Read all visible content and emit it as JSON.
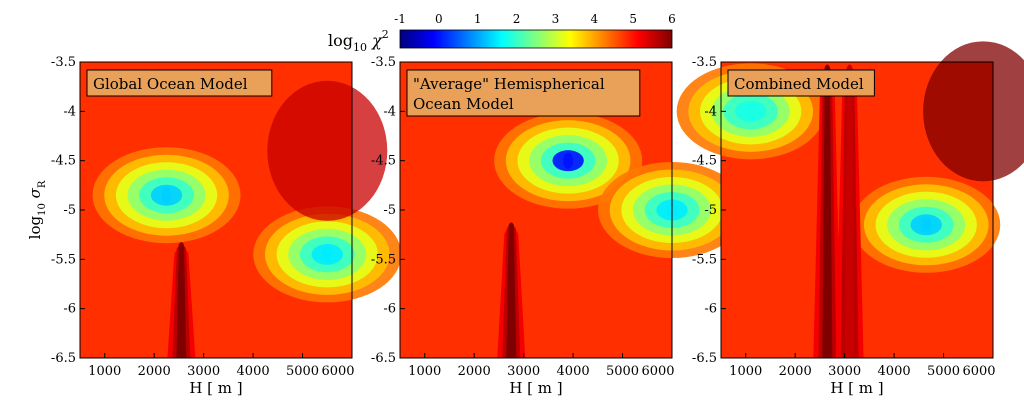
{
  "colorbar": {
    "label_base": "log",
    "label_sub": "10",
    "label_var": "χ",
    "label_sup": "2",
    "ticks": [
      "-1",
      "0",
      "1",
      "2",
      "3",
      "4",
      "5",
      "6"
    ],
    "range": [
      -1,
      6
    ],
    "colormap": "jet"
  },
  "axes": {
    "ylabel_base": "log",
    "ylabel_sub": "10",
    "ylabel_sym": "σ",
    "ylabel_symsub": "R",
    "xlabel": "H [ m ]",
    "xticks": [
      "1000",
      "2000",
      "3000",
      "4000",
      "5000",
      "6000"
    ],
    "yticks": [
      "-3.5",
      "-4",
      "-4.5",
      "-5",
      "-5.5",
      "-6",
      "-6.5"
    ]
  },
  "chart_data": [
    {
      "type": "heatmap",
      "title": "Global Ocean Model",
      "x_range": [
        500,
        6000
      ],
      "y_range": [
        -6.5,
        -3.5
      ],
      "z_range": [
        -1,
        6
      ],
      "features": [
        {
          "kind": "minimum",
          "x": 2250,
          "y": -4.85,
          "log10_chi2": 1.3
        },
        {
          "kind": "minimum",
          "x": 5500,
          "y": -5.45,
          "log10_chi2": 1.5
        },
        {
          "kind": "maximum_ridge",
          "x": 2550,
          "y_from": -6.5,
          "y_to": -5.3,
          "log10_chi2": 6
        },
        {
          "kind": "maximum_region",
          "x": 5500,
          "y": -4.4,
          "log10_chi2": 5.5
        }
      ]
    },
    {
      "type": "heatmap",
      "title": "\"Average\" Hemispherical Ocean Model",
      "title_lines": [
        "\"Average\" Hemispherical",
        "Ocean Model"
      ],
      "x_range": [
        500,
        6000
      ],
      "y_range": [
        -6.5,
        -3.5
      ],
      "z_range": [
        -1,
        6
      ],
      "features": [
        {
          "kind": "minimum",
          "x": 3900,
          "y": -4.5,
          "log10_chi2": 0
        },
        {
          "kind": "minimum",
          "x": 6000,
          "y": -5.0,
          "log10_chi2": 1.5
        },
        {
          "kind": "maximum_ridge",
          "x": 2750,
          "y_from": -6.5,
          "y_to": -5.1,
          "log10_chi2": 6
        }
      ]
    },
    {
      "type": "heatmap",
      "title": "Combined Model",
      "x_range": [
        500,
        6000
      ],
      "y_range": [
        -6.5,
        -3.5
      ],
      "z_range": [
        -1,
        6
      ],
      "features": [
        {
          "kind": "minimum",
          "x": 4650,
          "y": -5.15,
          "log10_chi2": 1.3
        },
        {
          "kind": "minimum",
          "x": 1100,
          "y": -4.0,
          "log10_chi2": 1.8
        },
        {
          "kind": "maximum_ridge",
          "x": 2650,
          "y_from": -6.5,
          "y_to": -3.5,
          "log10_chi2": 6
        },
        {
          "kind": "maximum_ridge",
          "x": 3100,
          "y_from": -6.5,
          "y_to": -3.5,
          "log10_chi2": 5.5
        },
        {
          "kind": "maximum_region",
          "x": 5800,
          "y": -4.0,
          "log10_chi2": 6
        }
      ]
    }
  ]
}
